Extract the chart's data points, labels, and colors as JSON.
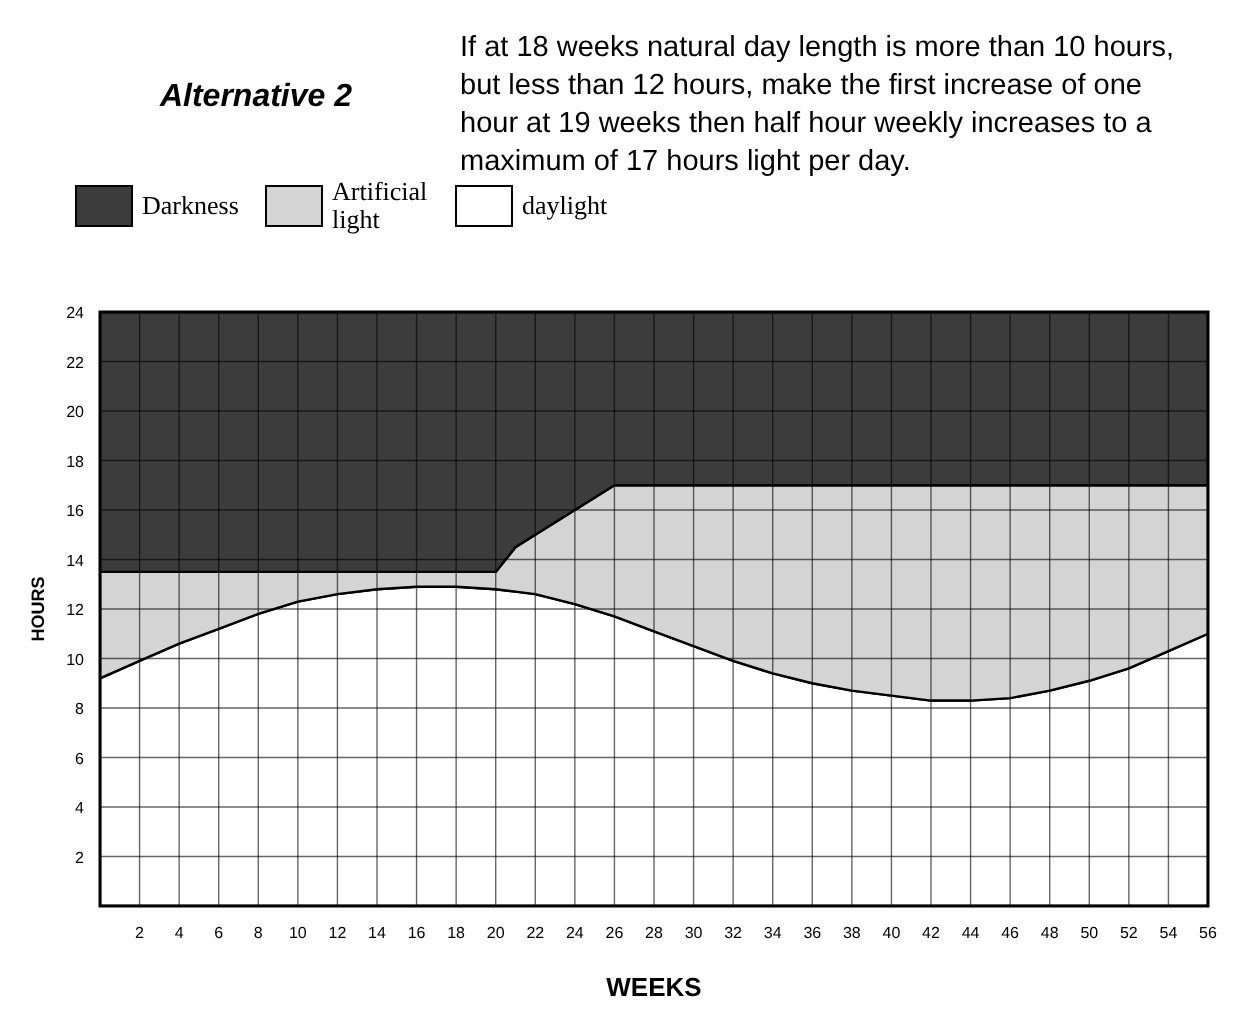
{
  "chart_data": {
    "type": "area",
    "stacked": true,
    "title": "Alternative 2",
    "subtitle": "If at 18 weeks natural day length is more than 10 hours, but less than 12 hours, make the first increase of one hour at 19 weeks then half hour weekly increases to a maximum of 17 hours light per day.",
    "xlabel": "WEEKS",
    "ylabel": "HOURS",
    "x": [
      0,
      2,
      4,
      6,
      8,
      10,
      12,
      14,
      16,
      18,
      20,
      21,
      22,
      24,
      26,
      28,
      30,
      32,
      34,
      36,
      38,
      40,
      42,
      44,
      46,
      48,
      50,
      52,
      54,
      56
    ],
    "series": [
      {
        "name": "daylight",
        "color": "#ffffff",
        "values": [
          9.2,
          9.9,
          10.6,
          11.2,
          11.8,
          12.3,
          12.6,
          12.8,
          12.9,
          12.9,
          12.8,
          12.7,
          12.6,
          12.2,
          11.7,
          11.1,
          10.5,
          9.9,
          9.4,
          9.0,
          8.7,
          8.5,
          8.3,
          8.3,
          8.4,
          8.7,
          9.1,
          9.6,
          10.3,
          11.0
        ]
      },
      {
        "name": "Artificial light",
        "color": "#d4d4d4",
        "values": [
          4.3,
          3.6,
          2.9,
          2.3,
          1.7,
          1.2,
          0.9,
          0.7,
          0.6,
          0.6,
          0.7,
          1.8,
          2.4,
          3.8,
          5.3,
          5.9,
          6.5,
          7.1,
          7.6,
          8.0,
          8.3,
          8.5,
          8.7,
          8.7,
          8.6,
          8.3,
          7.9,
          7.4,
          6.7,
          6.0
        ]
      },
      {
        "name": "Darkness",
        "color": "#3c3c3c",
        "values": [
          10.5,
          10.5,
          10.5,
          10.5,
          10.5,
          10.5,
          10.5,
          10.5,
          10.5,
          10.5,
          10.5,
          9.5,
          9,
          8,
          7,
          7,
          7,
          7,
          7,
          7,
          7,
          7,
          7,
          7,
          7,
          7,
          7,
          7,
          7,
          7
        ]
      }
    ],
    "xlim": [
      0,
      56
    ],
    "xticks": [
      2,
      4,
      6,
      8,
      10,
      12,
      14,
      16,
      18,
      20,
      22,
      24,
      26,
      28,
      30,
      32,
      34,
      36,
      38,
      40,
      42,
      44,
      46,
      48,
      50,
      52,
      54,
      56
    ],
    "ylim": [
      0,
      24
    ],
    "yticks": [
      2,
      4,
      6,
      8,
      10,
      12,
      14,
      16,
      18,
      20,
      22,
      24
    ],
    "grid": true,
    "legend": "top left"
  }
}
